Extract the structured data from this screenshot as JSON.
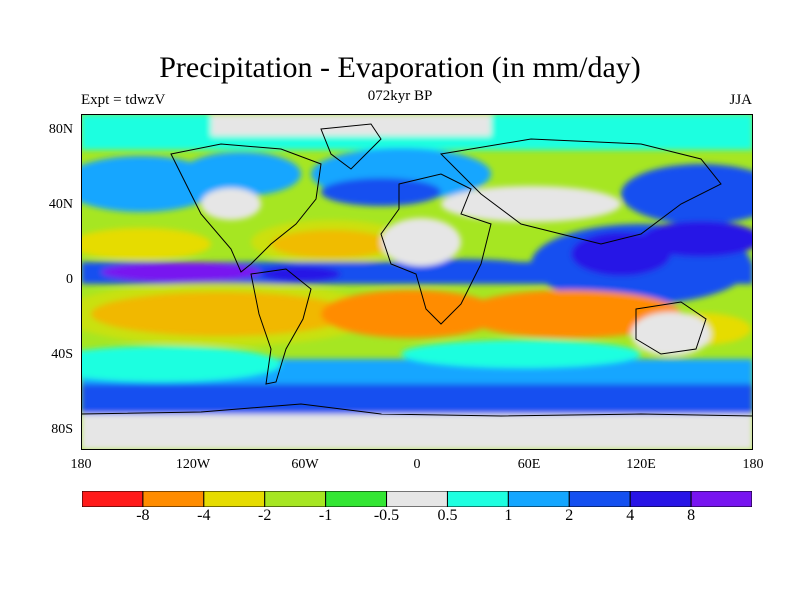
{
  "title": "Precipitation - Evaporation (in mm/day)",
  "experiment": "Expt = tdwzV",
  "period": "072kyr BP",
  "season": "JJA",
  "latitude_ticks": [
    "80N",
    "40N",
    "0",
    "40S",
    "80S"
  ],
  "longitude_ticks": [
    "180",
    "120W",
    "60W",
    "0",
    "60E",
    "120E",
    "180"
  ],
  "colorbar": {
    "colors": [
      "#ff1a1a",
      "#ff8c00",
      "#e6dc00",
      "#a6e622",
      "#33e633",
      "#e6e6e6",
      "#1effe0",
      "#14a6ff",
      "#1450f0",
      "#2814e6",
      "#7814f0"
    ],
    "labels": [
      "-8",
      "-4",
      "-2",
      "-1",
      "-0.5",
      "0.5",
      "1",
      "2",
      "4",
      "8"
    ]
  }
}
